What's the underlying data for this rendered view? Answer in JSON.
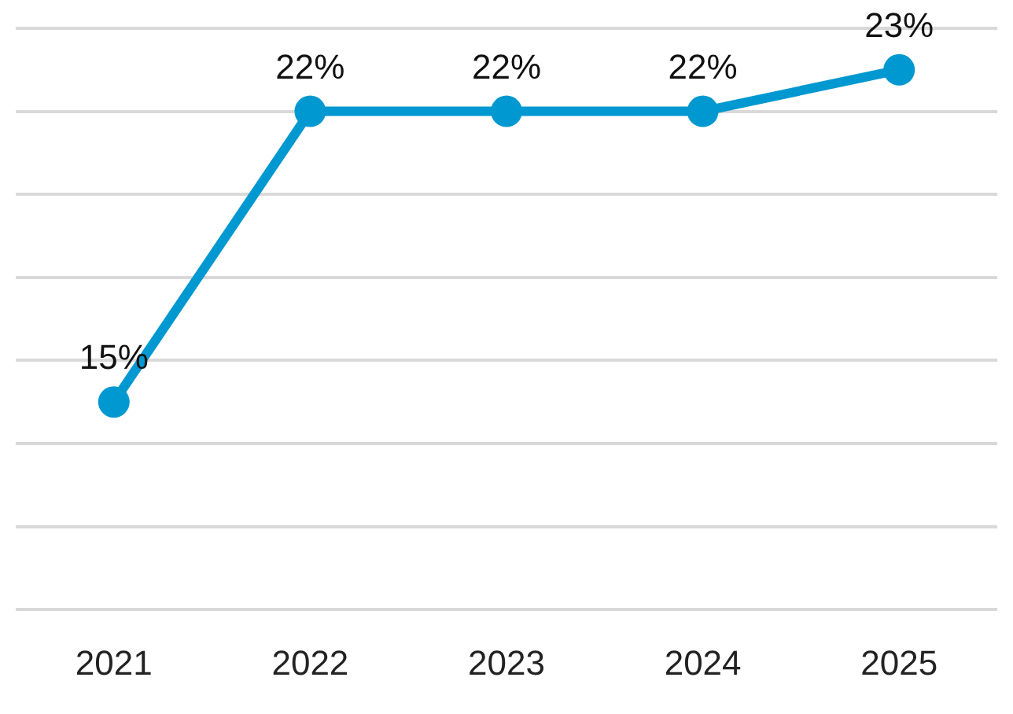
{
  "chart_data": {
    "type": "line",
    "categories": [
      "2021",
      "2022",
      "2023",
      "2024",
      "2025"
    ],
    "series": [
      {
        "color": "#0098d0",
        "values": [
          15,
          22,
          22,
          22,
          23
        ],
        "value_labels": [
          "15%",
          "22%",
          "22%",
          "22%",
          "23%"
        ]
      }
    ],
    "ylim": [
      10,
      24
    ],
    "yticks": [
      {
        "value": 10,
        "label": null
      },
      {
        "value": 12,
        "label": null
      },
      {
        "value": 14,
        "label": null
      },
      {
        "value": 16,
        "label": null
      },
      {
        "value": 18,
        "label": null
      },
      {
        "value": 20,
        "label": null
      },
      {
        "value": 22,
        "label": null
      },
      {
        "value": 24,
        "label": null
      }
    ],
    "tick_labels": "x",
    "grid": "y",
    "legend": false,
    "marker": "circle",
    "line_style": "solid"
  }
}
